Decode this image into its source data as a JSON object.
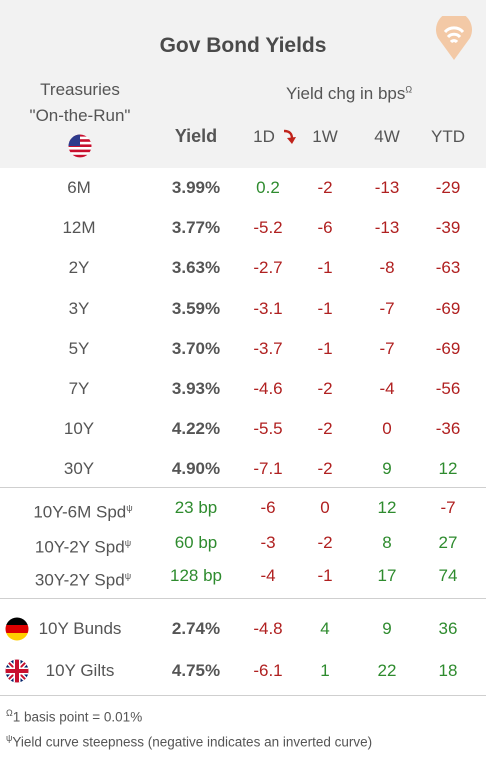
{
  "title": "Gov Bond Yields",
  "header": {
    "treasuries": "Treasuries",
    "on_the_run": "\"On-the-Run\"",
    "yield": "Yield",
    "yield_chg": "Yield chg in bps",
    "yield_chg_mark": "Ω",
    "cols": [
      "1D",
      "1W",
      "4W",
      "YTD"
    ],
    "sort_icon": "arrow-down-icon"
  },
  "treasury_rows": [
    {
      "label": "6M",
      "yield": "3.99%",
      "d1": "0.2",
      "w1": "-2",
      "w4": "-13",
      "ytd": "-29"
    },
    {
      "label": "12M",
      "yield": "3.77%",
      "d1": "-5.2",
      "w1": "-6",
      "w4": "-13",
      "ytd": "-39"
    },
    {
      "label": "2Y",
      "yield": "3.63%",
      "d1": "-2.7",
      "w1": "-1",
      "w4": "-8",
      "ytd": "-63"
    },
    {
      "label": "3Y",
      "yield": "3.59%",
      "d1": "-3.1",
      "w1": "-1",
      "w4": "-7",
      "ytd": "-69"
    },
    {
      "label": "5Y",
      "yield": "3.70%",
      "d1": "-3.7",
      "w1": "-1",
      "w4": "-7",
      "ytd": "-69"
    },
    {
      "label": "7Y",
      "yield": "3.93%",
      "d1": "-4.6",
      "w1": "-2",
      "w4": "-4",
      "ytd": "-56"
    },
    {
      "label": "10Y",
      "yield": "4.22%",
      "d1": "-5.5",
      "w1": "-2",
      "w4": "0",
      "ytd": "-36"
    },
    {
      "label": "30Y",
      "yield": "4.90%",
      "d1": "-7.1",
      "w1": "-2",
      "w4": "9",
      "ytd": "12"
    }
  ],
  "spread_rows": [
    {
      "label": "10Y-6M Spd",
      "mark": "ψ",
      "yield": "23 bp",
      "d1": "-6",
      "w1": "0",
      "w4": "12",
      "ytd": "-7"
    },
    {
      "label": "10Y-2Y Spd",
      "mark": "ψ",
      "yield": "60 bp",
      "d1": "-3",
      "w1": "-2",
      "w4": "8",
      "ytd": "27"
    },
    {
      "label": "30Y-2Y Spd",
      "mark": "ψ",
      "yield": "128 bp",
      "d1": "-4",
      "w1": "-1",
      "w4": "17",
      "ytd": "74"
    }
  ],
  "intl_rows": [
    {
      "label": "10Y Bunds",
      "flag": "germany-flag-icon",
      "yield": "2.74%",
      "d1": "-4.8",
      "w1": "4",
      "w4": "9",
      "ytd": "36"
    },
    {
      "label": "10Y Gilts",
      "flag": "uk-flag-icon",
      "yield": "4.75%",
      "d1": "-6.1",
      "w1": "1",
      "w4": "22",
      "ytd": "18"
    }
  ],
  "footnotes": [
    {
      "mark": "Ω",
      "text": "1 basis point = 0.01%"
    },
    {
      "mark": "ψ",
      "text": "Yield curve steepness (negative indicates an inverted curve)"
    }
  ],
  "colors": {
    "positive": "#2e8b2e",
    "negative": "#b02020",
    "header_bg": "#f2f2f2",
    "logo": "#f3c9a6"
  }
}
